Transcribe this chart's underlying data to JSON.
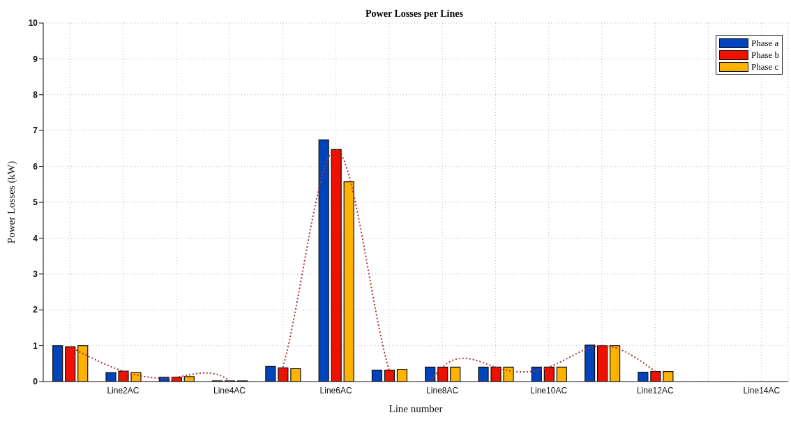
{
  "chart_data": {
    "type": "bar",
    "title": "Power Losses per Lines",
    "xlabel": "Line number",
    "ylabel": "Power Losses (kW)",
    "categories": [
      null,
      "Line2AC",
      null,
      "Line4AC",
      null,
      "Line6AC",
      null,
      "Line8AC",
      null,
      "Line10AC",
      null,
      "Line12AC",
      null,
      "Line14AC"
    ],
    "series": [
      {
        "name": "Phase a",
        "color": "#0044bb",
        "values": [
          1.0,
          0.25,
          0.12,
          0.02,
          0.42,
          6.74,
          0.32,
          0.4,
          0.4,
          0.4,
          1.02,
          0.26,
          null,
          null
        ]
      },
      {
        "name": "Phase b",
        "color": "#ee1100",
        "values": [
          0.97,
          0.29,
          0.12,
          0.02,
          0.38,
          6.47,
          0.32,
          0.4,
          0.4,
          0.4,
          1.0,
          0.28,
          null,
          null
        ]
      },
      {
        "name": "Phase c",
        "color": "#ffb300",
        "values": [
          1.0,
          0.25,
          0.14,
          0.02,
          0.36,
          5.57,
          0.34,
          0.4,
          0.4,
          0.4,
          1.0,
          0.28,
          null,
          null
        ]
      },
      {
        "type": "line",
        "color": "#b03030",
        "line_style": "dotted",
        "marker": "none",
        "values": [
          0.97,
          0.29,
          0.12,
          0.02,
          0.38,
          6.47,
          0.32,
          0.4,
          0.4,
          0.4,
          1.0,
          0.28,
          null,
          null
        ]
      }
    ],
    "ylim": [
      0,
      10
    ],
    "yticks": [
      0,
      1,
      2,
      3,
      4,
      5,
      6,
      7,
      8,
      9,
      10
    ],
    "grid": true,
    "legend": "top right"
  }
}
